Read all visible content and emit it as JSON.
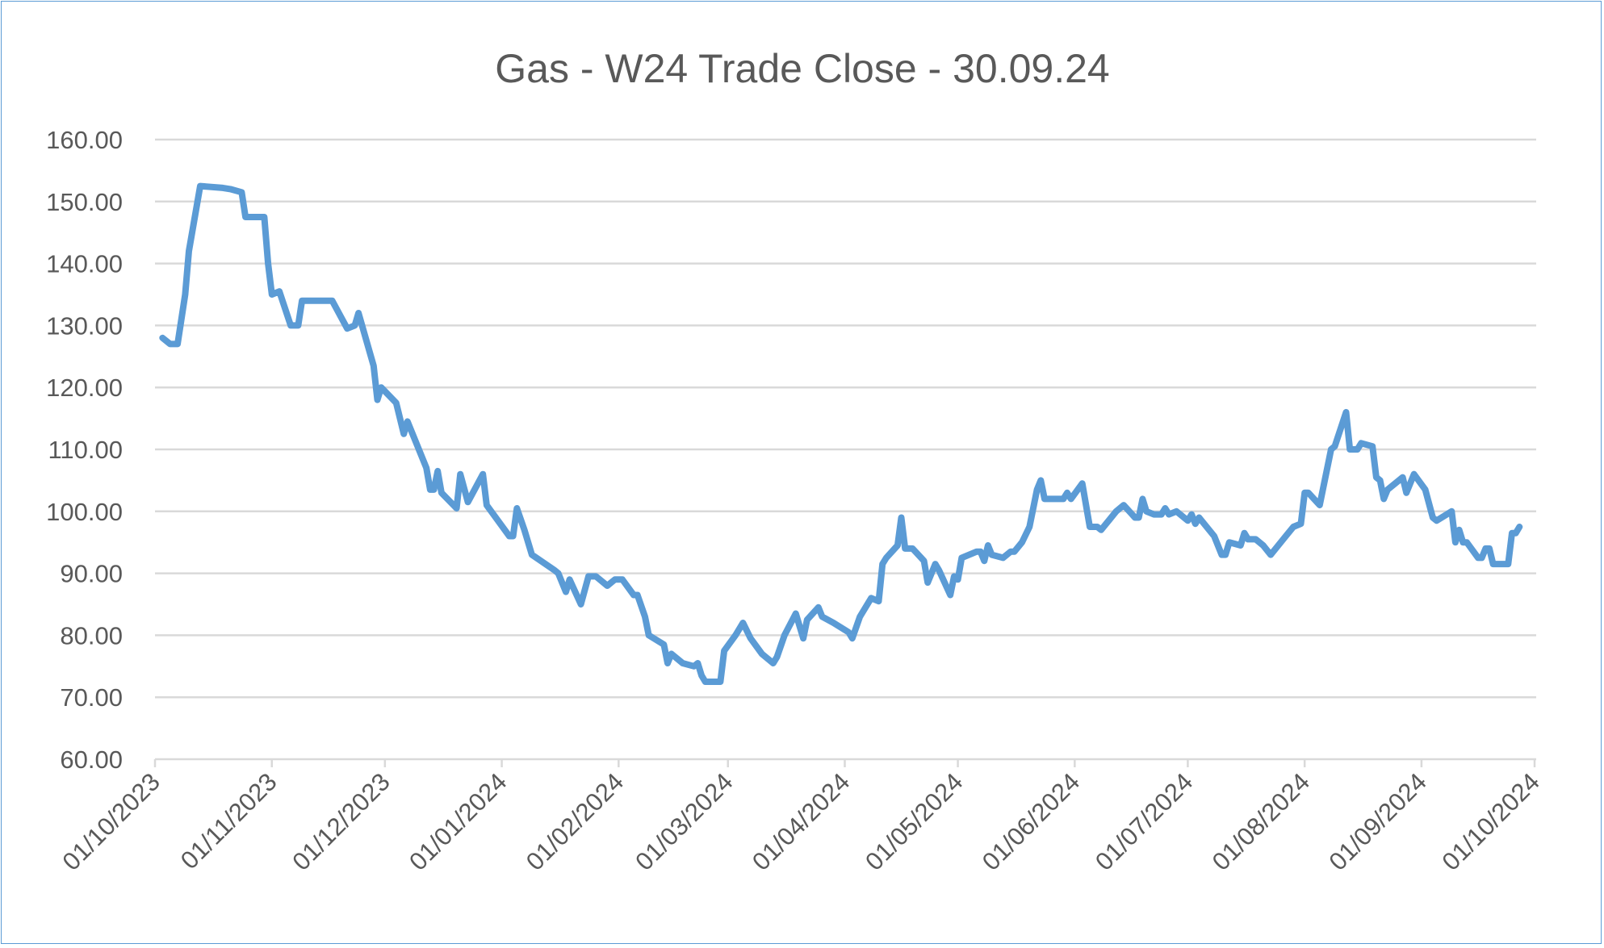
{
  "chart_data": {
    "type": "line",
    "title": "Gas - W24 Trade Close - 30.09.24",
    "xlabel": "",
    "ylabel": "",
    "xlim": [
      "2023-10-01",
      "2024-10-01"
    ],
    "ylim": [
      60,
      160
    ],
    "grid": true,
    "legend": "none",
    "line_color": "#5b9bd5",
    "x_tick_labels": [
      "01/10/2023",
      "01/11/2023",
      "01/12/2023",
      "01/01/2024",
      "01/02/2024",
      "01/03/2024",
      "01/04/2024",
      "01/05/2024",
      "01/06/2024",
      "01/07/2024",
      "01/08/2024",
      "01/09/2024",
      "01/10/2024"
    ],
    "x_tick_dates": [
      "2023-10-01",
      "2023-11-01",
      "2023-12-01",
      "2024-01-01",
      "2024-02-01",
      "2024-03-01",
      "2024-04-01",
      "2024-05-01",
      "2024-06-01",
      "2024-07-01",
      "2024-08-01",
      "2024-09-01",
      "2024-10-01"
    ],
    "y_tick_labels": [
      "60.00",
      "70.00",
      "80.00",
      "90.00",
      "100.00",
      "110.00",
      "120.00",
      "130.00",
      "140.00",
      "150.00",
      "160.00"
    ],
    "y_tick_values": [
      60,
      70,
      80,
      90,
      100,
      110,
      120,
      130,
      140,
      150,
      160
    ],
    "dates": [
      "2023-10-03",
      "2023-10-05",
      "2023-10-07",
      "2023-10-09",
      "2023-10-10",
      "2023-10-13",
      "2023-10-19",
      "2023-10-21",
      "2023-10-24",
      "2023-10-25",
      "2023-10-30",
      "2023-10-31",
      "2023-11-01",
      "2023-11-03",
      "2023-11-06",
      "2023-11-08",
      "2023-11-09",
      "2023-11-17",
      "2023-11-21",
      "2023-11-23",
      "2023-11-24",
      "2023-11-28",
      "2023-11-29",
      "2023-11-30",
      "2023-12-04",
      "2023-12-06",
      "2023-12-07",
      "2023-12-12",
      "2023-12-13",
      "2023-12-14",
      "2023-12-15",
      "2023-12-16",
      "2023-12-20",
      "2023-12-21",
      "2023-12-23",
      "2023-12-27",
      "2023-12-28",
      "2024-01-03",
      "2024-01-04",
      "2024-01-05",
      "2024-01-07",
      "2024-01-09",
      "2024-01-15",
      "2024-01-16",
      "2024-01-18",
      "2024-01-19",
      "2024-01-22",
      "2024-01-24",
      "2024-01-26",
      "2024-01-29",
      "2024-01-31",
      "2024-02-02",
      "2024-02-05",
      "2024-02-06",
      "2024-02-08",
      "2024-02-09",
      "2024-02-13",
      "2024-02-14",
      "2024-02-15",
      "2024-02-18",
      "2024-02-21",
      "2024-02-22",
      "2024-02-23",
      "2024-02-24",
      "2024-02-28",
      "2024-02-29",
      "2024-03-03",
      "2024-03-05",
      "2024-03-07",
      "2024-03-10",
      "2024-03-13",
      "2024-03-14",
      "2024-03-16",
      "2024-03-19",
      "2024-03-21",
      "2024-03-22",
      "2024-03-25",
      "2024-03-26",
      "2024-03-29",
      "2024-04-02",
      "2024-04-03",
      "2024-04-05",
      "2024-04-08",
      "2024-04-10",
      "2024-04-11",
      "2024-04-12",
      "2024-04-15",
      "2024-04-16",
      "2024-04-17",
      "2024-04-19",
      "2024-04-22",
      "2024-04-23",
      "2024-04-25",
      "2024-04-26",
      "2024-04-29",
      "2024-04-30",
      "2024-05-01",
      "2024-05-02",
      "2024-05-06",
      "2024-05-07",
      "2024-05-08",
      "2024-05-09",
      "2024-05-10",
      "2024-05-13",
      "2024-05-15",
      "2024-05-16",
      "2024-05-18",
      "2024-05-20",
      "2024-05-22",
      "2024-05-23",
      "2024-05-24",
      "2024-05-29",
      "2024-05-30",
      "2024-05-31",
      "2024-06-03",
      "2024-06-05",
      "2024-06-07",
      "2024-06-08",
      "2024-06-10",
      "2024-06-12",
      "2024-06-14",
      "2024-06-17",
      "2024-06-18",
      "2024-06-19",
      "2024-06-20",
      "2024-06-22",
      "2024-06-24",
      "2024-06-25",
      "2024-06-26",
      "2024-06-28",
      "2024-07-01",
      "2024-07-02",
      "2024-07-03",
      "2024-07-04",
      "2024-07-08",
      "2024-07-10",
      "2024-07-11",
      "2024-07-12",
      "2024-07-15",
      "2024-07-16",
      "2024-07-17",
      "2024-07-19",
      "2024-07-21",
      "2024-07-23",
      "2024-07-25",
      "2024-07-27",
      "2024-07-29",
      "2024-07-31",
      "2024-08-01",
      "2024-08-02",
      "2024-08-05",
      "2024-08-08",
      "2024-08-09",
      "2024-08-12",
      "2024-08-13",
      "2024-08-15",
      "2024-08-16",
      "2024-08-19",
      "2024-08-20",
      "2024-08-21",
      "2024-08-22",
      "2024-08-23",
      "2024-08-27",
      "2024-08-28",
      "2024-08-30",
      "2024-09-02",
      "2024-09-04",
      "2024-09-05",
      "2024-09-09",
      "2024-09-10",
      "2024-09-11",
      "2024-09-12",
      "2024-09-13",
      "2024-09-16",
      "2024-09-17",
      "2024-09-18",
      "2024-09-19",
      "2024-09-20",
      "2024-09-24",
      "2024-09-25",
      "2024-09-26",
      "2024-09-27"
    ],
    "values": [
      128.0,
      127.0,
      127.0,
      135.0,
      142.0,
      152.5,
      152.2,
      152.0,
      151.5,
      147.5,
      147.5,
      140.0,
      135.0,
      135.5,
      130.0,
      130.0,
      134.0,
      134.0,
      129.5,
      130.0,
      132.0,
      123.5,
      118.0,
      120.0,
      117.5,
      112.5,
      114.5,
      107.0,
      103.5,
      103.5,
      106.5,
      103.0,
      100.5,
      106.0,
      101.5,
      106.0,
      101.0,
      96.0,
      96.0,
      100.5,
      97.0,
      93.0,
      90.5,
      90.0,
      87.0,
      89.0,
      85.0,
      89.5,
      89.5,
      88.0,
      89.0,
      89.0,
      86.5,
      86.5,
      83.0,
      80.0,
      78.5,
      75.5,
      77.0,
      75.5,
      75.0,
      75.5,
      73.5,
      72.5,
      72.5,
      77.5,
      80.0,
      82.0,
      79.5,
      77.0,
      75.5,
      76.5,
      80.0,
      83.5,
      79.5,
      82.5,
      84.5,
      83.0,
      82.0,
      80.5,
      79.5,
      83.0,
      86.0,
      85.5,
      91.5,
      92.5,
      94.5,
      99.0,
      94.0,
      94.0,
      92.0,
      88.5,
      91.5,
      90.5,
      86.5,
      89.5,
      89.0,
      92.5,
      93.5,
      93.5,
      92.0,
      94.5,
      93.0,
      92.5,
      93.5,
      93.5,
      95.0,
      97.5,
      103.5,
      105.0,
      102.0,
      102.0,
      103.0,
      102.0,
      104.5,
      97.5,
      97.5,
      97.0,
      98.5,
      100.0,
      101.0,
      99.0,
      99.0,
      102.0,
      100.0,
      99.5,
      99.5,
      100.5,
      99.5,
      100.0,
      98.5,
      99.5,
      98.0,
      99.0,
      96.0,
      93.0,
      93.0,
      95.0,
      94.5,
      96.5,
      95.5,
      95.5,
      94.5,
      93.0,
      94.5,
      96.0,
      97.5,
      98.0,
      103.0,
      103.0,
      101.0,
      110.0,
      110.5,
      116.0,
      110.0,
      110.0,
      111.0,
      110.5,
      105.5,
      105.0,
      102.0,
      103.5,
      105.5,
      103.0,
      106.0,
      103.5,
      99.0,
      98.5,
      100.0,
      95.0,
      97.0,
      95.0,
      95.0,
      92.5,
      92.5,
      94.0,
      94.0,
      91.5,
      91.5,
      96.5,
      96.5,
      97.5
    ]
  }
}
